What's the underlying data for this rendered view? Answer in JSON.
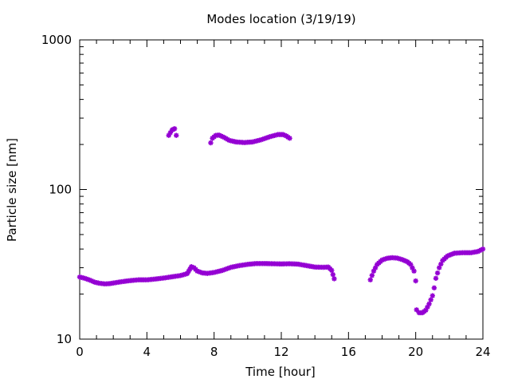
{
  "chart_data": {
    "type": "scatter",
    "title": "Modes location (3/19/19)",
    "xlabel": "Time [hour]",
    "ylabel": "Particle size [nm]",
    "xlim": [
      0,
      24
    ],
    "ylim": [
      10,
      1000
    ],
    "y_scale": "log",
    "x_ticks": [
      0,
      4,
      8,
      12,
      16,
      20,
      24
    ],
    "x_tick_labels": [
      "0",
      "4",
      "8",
      "12",
      "16",
      "20",
      "24"
    ],
    "y_ticks": [
      10,
      100,
      1000
    ],
    "y_tick_labels": [
      "10",
      "100",
      "1000"
    ],
    "grid": false,
    "legend": false,
    "marker": "star",
    "series": [
      {
        "color": "#9400d3",
        "segments": [
          [
            [
              0.0,
              26.0
            ],
            [
              0.3,
              25.5
            ],
            [
              0.6,
              24.8
            ],
            [
              0.9,
              24.0
            ],
            [
              1.2,
              23.6
            ],
            [
              1.5,
              23.4
            ],
            [
              1.8,
              23.5
            ],
            [
              2.1,
              23.8
            ],
            [
              2.5,
              24.2
            ],
            [
              3.0,
              24.6
            ],
            [
              3.5,
              24.9
            ],
            [
              4.0,
              24.9
            ],
            [
              4.5,
              25.2
            ],
            [
              5.0,
              25.6
            ],
            [
              5.5,
              26.1
            ],
            [
              6.0,
              26.6
            ],
            [
              6.4,
              27.4
            ],
            [
              6.65,
              30.5
            ],
            [
              6.8,
              30.0
            ],
            [
              7.0,
              28.5
            ],
            [
              7.3,
              27.7
            ],
            [
              7.6,
              27.5
            ],
            [
              8.0,
              27.9
            ],
            [
              8.5,
              28.8
            ],
            [
              9.0,
              30.2
            ],
            [
              9.5,
              31.0
            ],
            [
              10.0,
              31.6
            ],
            [
              10.5,
              32.0
            ],
            [
              11.0,
              32.0
            ],
            [
              11.5,
              31.9
            ],
            [
              12.0,
              31.8
            ],
            [
              12.5,
              31.9
            ],
            [
              13.0,
              31.7
            ],
            [
              13.5,
              31.0
            ],
            [
              14.0,
              30.3
            ],
            [
              14.5,
              30.2
            ],
            [
              14.8,
              30.3
            ],
            [
              15.0,
              28.8
            ],
            [
              15.15,
              25.3
            ]
          ],
          [
            [
              17.3,
              24.9
            ],
            [
              17.5,
              28.5
            ],
            [
              17.7,
              31.5
            ],
            [
              18.0,
              33.8
            ],
            [
              18.3,
              34.7
            ],
            [
              18.6,
              35.0
            ],
            [
              18.9,
              34.8
            ],
            [
              19.2,
              34.0
            ],
            [
              19.5,
              32.9
            ],
            [
              19.7,
              31.5
            ],
            [
              19.9,
              28.5
            ],
            [
              20.0,
              24.5
            ]
          ],
          [
            [
              20.05,
              15.7
            ],
            [
              20.2,
              15.0
            ],
            [
              20.4,
              15.0
            ],
            [
              20.6,
              15.6
            ],
            [
              20.8,
              17.2
            ],
            [
              21.0,
              19.5
            ],
            [
              21.1,
              22.0
            ],
            [
              21.2,
              25.5
            ],
            [
              21.4,
              30.0
            ],
            [
              21.6,
              33.5
            ],
            [
              21.9,
              36.0
            ],
            [
              22.3,
              37.5
            ],
            [
              22.8,
              37.8
            ],
            [
              23.3,
              37.8
            ],
            [
              23.7,
              38.5
            ],
            [
              24.0,
              40.0
            ]
          ],
          [
            [
              5.3,
              230.0
            ],
            [
              5.4,
              240.0
            ],
            [
              5.5,
              250.0
            ],
            [
              5.65,
              255.0
            ],
            [
              5.75,
              230.0
            ]
          ],
          [
            [
              7.8,
              205.0
            ],
            [
              7.9,
              220.0
            ],
            [
              8.1,
              230.0
            ],
            [
              8.3,
              231.0
            ],
            [
              8.6,
              223.0
            ],
            [
              8.9,
              213.0
            ],
            [
              9.3,
              208.0
            ],
            [
              9.8,
              206.0
            ],
            [
              10.3,
              208.0
            ],
            [
              10.8,
              215.0
            ],
            [
              11.3,
              225.0
            ],
            [
              11.8,
              233.0
            ],
            [
              12.1,
              233.0
            ],
            [
              12.3,
              228.0
            ],
            [
              12.5,
              220.0
            ]
          ]
        ]
      }
    ]
  }
}
